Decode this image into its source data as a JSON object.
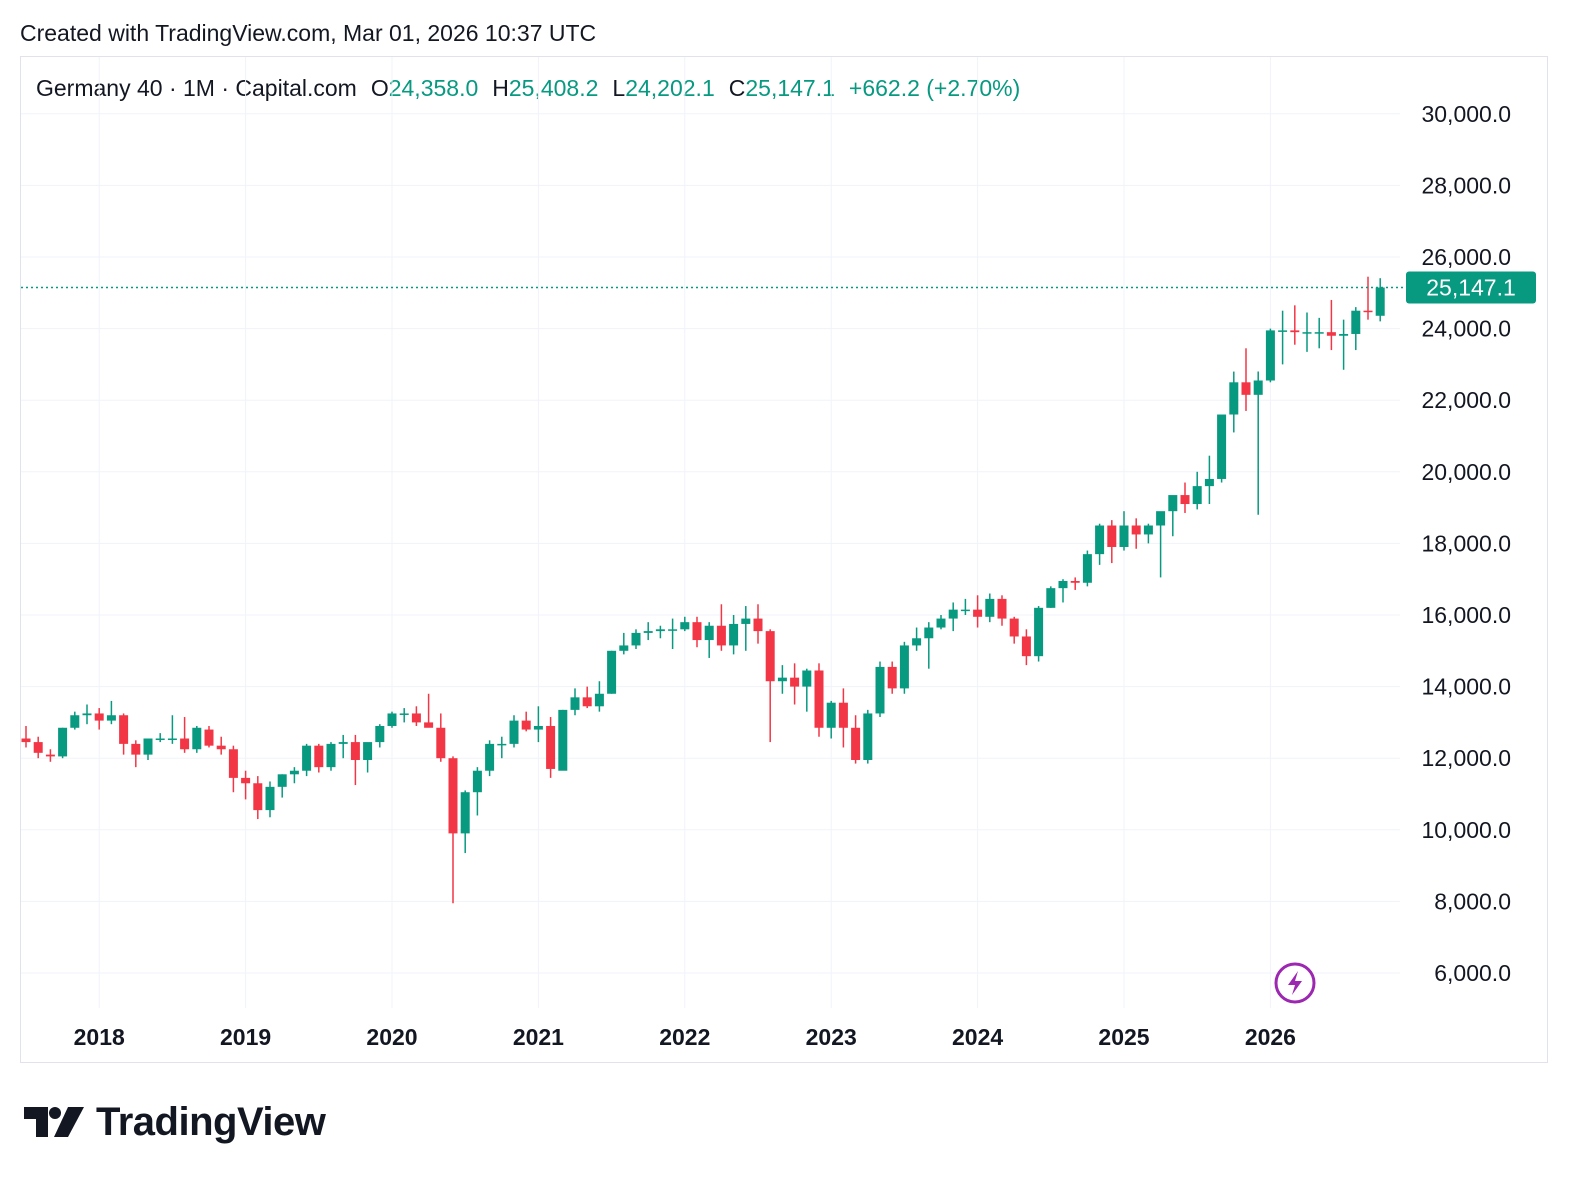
{
  "header": {
    "created": "Created with TradingView.com, Mar 01, 2026 10:37 UTC"
  },
  "legend": {
    "symbol": "Germany 40 · 1M · Capital.com",
    "open_label": "O",
    "open": "24,358.0",
    "high_label": "H",
    "high": "25,408.2",
    "low_label": "L",
    "low": "24,202.1",
    "close_label": "C",
    "close": "25,147.1",
    "change": "+662.2 (+2.70%)"
  },
  "colors": {
    "up": "#089981",
    "down": "#f23645",
    "grid": "#f0f3fa",
    "text": "#131722",
    "accent": "#9c27b0"
  },
  "price_badge": "25,147.1",
  "brand": "TradingView",
  "icons": {
    "logo": "tradingview-logo-icon",
    "flash": "lightning-icon"
  },
  "chart_data": {
    "type": "candlestick",
    "title": "Germany 40 · 1M · Capital.com",
    "interval": "1M",
    "first_bar_month": "2017-07",
    "ylim": [
      5000,
      31500
    ],
    "y_ticks": [
      6000,
      8000,
      10000,
      12000,
      14000,
      16000,
      18000,
      20000,
      22000,
      24000,
      26000,
      28000,
      30000
    ],
    "y_tick_labels": [
      "6,000.0",
      "8,000.0",
      "10,000.0",
      "12,000.0",
      "14,000.0",
      "16,000.0",
      "18,000.0",
      "20,000.0",
      "22,000.0",
      "24,000.0",
      "26,000.0",
      "28,000.0",
      "30,000.0"
    ],
    "x_tick_labels": [
      "2018",
      "2019",
      "2020",
      "2021",
      "2022",
      "2023",
      "2024",
      "2025",
      "2026"
    ],
    "last_price": 25147.1,
    "ohlc": [
      [
        12550,
        12900,
        12300,
        12450
      ],
      [
        12450,
        12600,
        12000,
        12150
      ],
      [
        12100,
        12250,
        11900,
        12050
      ],
      [
        12050,
        12850,
        12000,
        12850
      ],
      [
        12850,
        13300,
        12800,
        13200
      ],
      [
        13200,
        13500,
        12950,
        13250
      ],
      [
        13250,
        13400,
        12800,
        13050
      ],
      [
        13050,
        13600,
        12950,
        13200
      ],
      [
        13200,
        13250,
        12100,
        12400
      ],
      [
        12400,
        12500,
        11750,
        12100
      ],
      [
        12100,
        12450,
        11950,
        12550
      ],
      [
        12550,
        12700,
        12450,
        12550
      ],
      [
        12550,
        13200,
        12400,
        12550
      ],
      [
        12550,
        13150,
        12150,
        12250
      ],
      [
        12250,
        12900,
        12150,
        12850
      ],
      [
        12800,
        12900,
        12300,
        12350
      ],
      [
        12350,
        12600,
        12100,
        12250
      ],
      [
        12250,
        12350,
        11050,
        11450
      ],
      [
        11450,
        11650,
        10850,
        11300
      ],
      [
        11300,
        11500,
        10300,
        10550
      ],
      [
        10550,
        11350,
        10350,
        11200
      ],
      [
        11200,
        11550,
        10900,
        11550
      ],
      [
        11550,
        11750,
        11300,
        11650
      ],
      [
        11650,
        12400,
        11500,
        12350
      ],
      [
        12350,
        12400,
        11600,
        11750
      ],
      [
        11750,
        12450,
        11650,
        12400
      ],
      [
        12400,
        12650,
        12000,
        12450
      ],
      [
        12450,
        12650,
        11250,
        11950
      ],
      [
        11950,
        12400,
        11600,
        12450
      ],
      [
        12450,
        12950,
        12300,
        12900
      ],
      [
        12900,
        13300,
        12850,
        13250
      ],
      [
        13250,
        13400,
        13000,
        13250
      ],
      [
        13250,
        13450,
        12900,
        13000
      ],
      [
        13000,
        13800,
        12900,
        12850
      ],
      [
        12850,
        13250,
        11900,
        12000
      ],
      [
        12000,
        12050,
        7950,
        9900
      ],
      [
        9900,
        11100,
        9350,
        11050
      ],
      [
        11050,
        11750,
        10400,
        11650
      ],
      [
        11650,
        12500,
        11500,
        12400
      ],
      [
        12400,
        12600,
        12000,
        12400
      ],
      [
        12400,
        13200,
        12300,
        13050
      ],
      [
        13050,
        13300,
        12750,
        12800
      ],
      [
        12800,
        13450,
        12450,
        12900
      ],
      [
        12900,
        13150,
        11450,
        11700
      ],
      [
        11650,
        13350,
        11800,
        13350
      ],
      [
        13350,
        13950,
        13200,
        13700
      ],
      [
        13700,
        14000,
        13400,
        13450
      ],
      [
        13450,
        14150,
        13300,
        13800
      ],
      [
        13800,
        15000,
        13800,
        15000
      ],
      [
        15000,
        15500,
        14900,
        15150
      ],
      [
        15150,
        15600,
        15050,
        15500
      ],
      [
        15500,
        15800,
        15300,
        15550
      ],
      [
        15550,
        15700,
        15350,
        15600
      ],
      [
        15600,
        15900,
        15050,
        15600
      ],
      [
        15600,
        15950,
        15550,
        15800
      ],
      [
        15800,
        15950,
        15100,
        15300
      ],
      [
        15300,
        15800,
        14800,
        15700
      ],
      [
        15700,
        16300,
        15000,
        15150
      ],
      [
        15150,
        16000,
        14900,
        15750
      ],
      [
        15750,
        16250,
        15000,
        15900
      ],
      [
        15900,
        16300,
        15200,
        15550
      ],
      [
        15550,
        15600,
        12450,
        14150
      ],
      [
        14150,
        14600,
        13800,
        14250
      ],
      [
        14250,
        14650,
        13500,
        14000
      ],
      [
        14000,
        14500,
        13300,
        14450
      ],
      [
        14450,
        14650,
        12600,
        12850
      ],
      [
        12850,
        13600,
        12550,
        13550
      ],
      [
        13550,
        13950,
        12300,
        12850
      ],
      [
        12850,
        13200,
        11850,
        11950
      ],
      [
        11950,
        13350,
        11850,
        13250
      ],
      [
        13250,
        14700,
        13150,
        14550
      ],
      [
        14550,
        14700,
        13800,
        13950
      ],
      [
        13950,
        15250,
        13800,
        15150
      ],
      [
        15150,
        15650,
        15000,
        15350
      ],
      [
        15350,
        15800,
        14500,
        15650
      ],
      [
        15650,
        16000,
        15600,
        15900
      ],
      [
        15900,
        16350,
        15550,
        16150
      ],
      [
        16150,
        16450,
        16000,
        16150
      ],
      [
        16150,
        16550,
        15650,
        15950
      ],
      [
        15950,
        16600,
        15800,
        16450
      ],
      [
        16450,
        16550,
        15700,
        15900
      ],
      [
        15900,
        15950,
        15200,
        15400
      ],
      [
        15400,
        15600,
        14600,
        14850
      ],
      [
        14850,
        16250,
        14700,
        16200
      ],
      [
        16200,
        16800,
        16200,
        16750
      ],
      [
        16750,
        17000,
        16350,
        16950
      ],
      [
        16950,
        17050,
        16700,
        16900
      ],
      [
        16900,
        17800,
        16800,
        17700
      ],
      [
        17700,
        18550,
        17400,
        18500
      ],
      [
        18500,
        18650,
        17450,
        17900
      ],
      [
        17900,
        18900,
        17800,
        18500
      ],
      [
        18500,
        18700,
        17850,
        18250
      ],
      [
        18250,
        18550,
        18000,
        18500
      ],
      [
        18500,
        18800,
        17050,
        18900
      ],
      [
        18900,
        19300,
        18200,
        19350
      ],
      [
        19350,
        19700,
        18850,
        19100
      ],
      [
        19100,
        20000,
        18950,
        19600
      ],
      [
        19600,
        20450,
        19100,
        19800
      ],
      [
        19800,
        21500,
        19700,
        21600
      ],
      [
        21600,
        22800,
        21100,
        22500
      ],
      [
        22500,
        23450,
        21700,
        22150
      ],
      [
        22150,
        22800,
        18800,
        22550
      ],
      [
        22550,
        24000,
        22500,
        23950
      ],
      [
        23950,
        24500,
        23000,
        23950
      ],
      [
        23950,
        24650,
        23550,
        23900
      ],
      [
        23900,
        24450,
        23350,
        23900
      ],
      [
        23900,
        24300,
        23450,
        23900
      ],
      [
        23900,
        24800,
        23400,
        23800
      ],
      [
        23800,
        24250,
        22850,
        23850
      ],
      [
        23850,
        24600,
        23400,
        24500
      ],
      [
        24500,
        25450,
        24250,
        24480
      ],
      [
        24358.0,
        25408.2,
        24202.1,
        25147.1
      ]
    ]
  }
}
